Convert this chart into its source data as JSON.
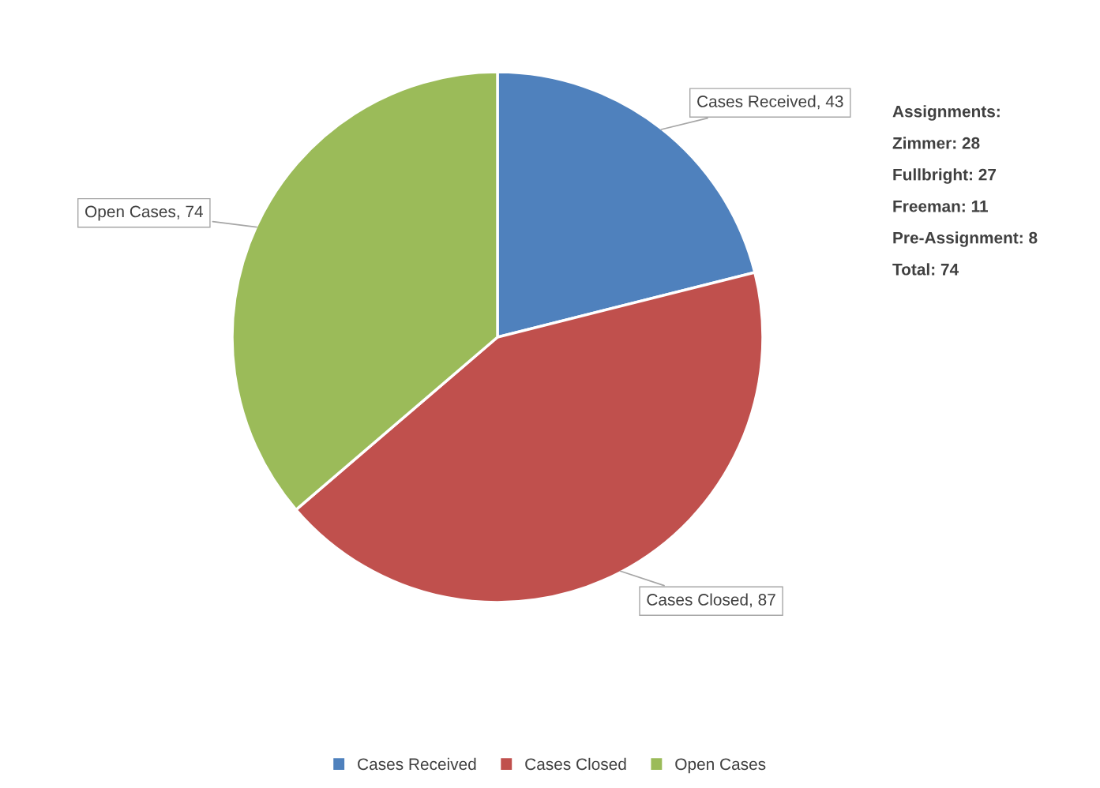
{
  "chart_data": {
    "type": "pie",
    "categories": [
      "Cases Received",
      "Cases Closed",
      "Open Cases"
    ],
    "values": [
      43,
      87,
      74
    ],
    "colors": [
      "#4f81bd",
      "#c0504d",
      "#9bbb59"
    ],
    "value_labels": [
      "Cases Received, 43",
      "Cases Closed, 87",
      "Open Cases, 74"
    ],
    "legend": "bottom",
    "annotations": [
      "Assignments:",
      "Zimmer: 28",
      "Fullbright: 27",
      "Freeman: 11",
      "Pre-Assignment: 8",
      "Total: 74"
    ]
  }
}
